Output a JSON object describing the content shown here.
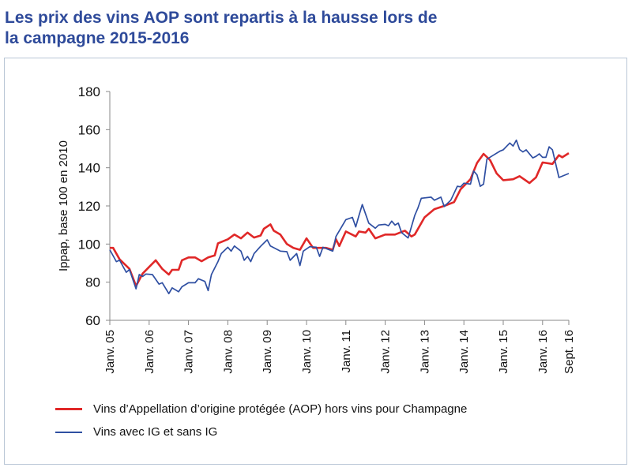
{
  "title_lines": [
    "Les prix des vins AOP sont repartis à la hausse lors de",
    "la campagne 2015-2016"
  ],
  "chart_data": {
    "type": "line",
    "title": "Les prix des vins AOP sont repartis à la hausse lors de la campagne 2015-2016",
    "ylabel": "Ippap, base 100 en 2010",
    "xlabel": "",
    "ylim": [
      60,
      180
    ],
    "yticks": [
      60,
      80,
      100,
      120,
      140,
      160,
      180
    ],
    "xticks": [
      {
        "date": "2005-01",
        "label": "Janv. 05"
      },
      {
        "date": "2006-01",
        "label": "Janv. 06"
      },
      {
        "date": "2007-01",
        "label": "Janv. 07"
      },
      {
        "date": "2008-01",
        "label": "Janv. 08"
      },
      {
        "date": "2009-01",
        "label": "Janv. 09"
      },
      {
        "date": "2010-01",
        "label": "Janv. 10"
      },
      {
        "date": "2011-01",
        "label": "Janv. 11"
      },
      {
        "date": "2012-01",
        "label": "Janv. 12"
      },
      {
        "date": "2013-01",
        "label": "Janv. 13"
      },
      {
        "date": "2014-01",
        "label": "Janv. 14"
      },
      {
        "date": "2015-01",
        "label": "Janv. 15"
      },
      {
        "date": "2016-01",
        "label": "Janv. 16"
      },
      {
        "date": "2016-09",
        "label": "Sept. 16"
      }
    ],
    "grid": false,
    "legend_position": "bottom",
    "series": [
      {
        "name": "Vins d’Appellation d’origine protégée (AOP) hors vins pour Champagne",
        "color": "#e02828",
        "points": [
          [
            "2005-01",
            98
          ],
          [
            "2005-02",
            98
          ],
          [
            "2005-04",
            92
          ],
          [
            "2005-07",
            87
          ],
          [
            "2005-09",
            78
          ],
          [
            "2005-11",
            84.5
          ],
          [
            "2006-01",
            88
          ],
          [
            "2006-03",
            91.5
          ],
          [
            "2006-05",
            87
          ],
          [
            "2006-07",
            84
          ],
          [
            "2006-08",
            86.5
          ],
          [
            "2006-10",
            86.5
          ],
          [
            "2006-11",
            91.5
          ],
          [
            "2007-01",
            93
          ],
          [
            "2007-03",
            93
          ],
          [
            "2007-05",
            91
          ],
          [
            "2007-07",
            93
          ],
          [
            "2007-09",
            94
          ],
          [
            "2007-10",
            100.4
          ],
          [
            "2008-01",
            102.5
          ],
          [
            "2008-03",
            105
          ],
          [
            "2008-05",
            103
          ],
          [
            "2008-07",
            106
          ],
          [
            "2008-09",
            103.4
          ],
          [
            "2008-11",
            104.5
          ],
          [
            "2008-12",
            108
          ],
          [
            "2009-02",
            110.3
          ],
          [
            "2009-03",
            107
          ],
          [
            "2009-05",
            105
          ],
          [
            "2009-07",
            100
          ],
          [
            "2009-09",
            98
          ],
          [
            "2009-11",
            97
          ],
          [
            "2010-01",
            103
          ],
          [
            "2010-03",
            98
          ],
          [
            "2010-07",
            98
          ],
          [
            "2010-09",
            97
          ],
          [
            "2010-10",
            102.5
          ],
          [
            "2010-11",
            99
          ],
          [
            "2011-01",
            106.6
          ],
          [
            "2011-04",
            104
          ],
          [
            "2011-05",
            106.6
          ],
          [
            "2011-07",
            106
          ],
          [
            "2011-08",
            108
          ],
          [
            "2011-10",
            103
          ],
          [
            "2012-01",
            105
          ],
          [
            "2012-04",
            105
          ],
          [
            "2012-07",
            107
          ],
          [
            "2012-09",
            104
          ],
          [
            "2012-10",
            105
          ],
          [
            "2013-01",
            114
          ],
          [
            "2013-04",
            118.3
          ],
          [
            "2013-07",
            120
          ],
          [
            "2013-10",
            122
          ],
          [
            "2013-12",
            128.7
          ],
          [
            "2014-03",
            134
          ],
          [
            "2014-05",
            142.5
          ],
          [
            "2014-07",
            147.3
          ],
          [
            "2014-09",
            144
          ],
          [
            "2014-11",
            137
          ],
          [
            "2015-01",
            133.5
          ],
          [
            "2015-04",
            134
          ],
          [
            "2015-06",
            135.6
          ],
          [
            "2015-09",
            132
          ],
          [
            "2015-11",
            135
          ],
          [
            "2016-01",
            142.8
          ],
          [
            "2016-04",
            142
          ],
          [
            "2016-06",
            146.6
          ],
          [
            "2016-07",
            145.5
          ],
          [
            "2016-09",
            147.7
          ]
        ]
      },
      {
        "name": "Vins avec IG et sans IG",
        "color": "#2f4fa2",
        "points": [
          [
            "2005-01",
            97
          ],
          [
            "2005-03",
            90.8
          ],
          [
            "2005-04",
            91.5
          ],
          [
            "2005-06",
            85.2
          ],
          [
            "2005-07",
            86.6
          ],
          [
            "2005-09",
            76.5
          ],
          [
            "2005-10",
            84
          ],
          [
            "2005-11",
            83
          ],
          [
            "2005-12",
            84.3
          ],
          [
            "2006-02",
            84
          ],
          [
            "2006-04",
            79
          ],
          [
            "2006-05",
            79.7
          ],
          [
            "2006-07",
            74
          ],
          [
            "2006-08",
            77
          ],
          [
            "2006-10",
            75
          ],
          [
            "2006-11",
            77.6
          ],
          [
            "2007-01",
            79.7
          ],
          [
            "2007-03",
            79.7
          ],
          [
            "2007-04",
            81.8
          ],
          [
            "2007-06",
            80.4
          ],
          [
            "2007-07",
            75.6
          ],
          [
            "2007-08",
            84
          ],
          [
            "2007-10",
            90.8
          ],
          [
            "2007-11",
            95
          ],
          [
            "2008-01",
            98.3
          ],
          [
            "2008-02",
            96.3
          ],
          [
            "2008-03",
            99
          ],
          [
            "2008-05",
            96.3
          ],
          [
            "2008-06",
            91.5
          ],
          [
            "2008-07",
            93.5
          ],
          [
            "2008-08",
            90.8
          ],
          [
            "2008-09",
            95
          ],
          [
            "2008-11",
            98.8
          ],
          [
            "2009-01",
            102.2
          ],
          [
            "2009-02",
            99
          ],
          [
            "2009-05",
            96.3
          ],
          [
            "2009-07",
            96
          ],
          [
            "2009-08",
            91.5
          ],
          [
            "2009-10",
            95
          ],
          [
            "2009-11",
            88.7
          ],
          [
            "2009-12",
            96.3
          ],
          [
            "2010-02",
            98.6
          ],
          [
            "2010-04",
            98.3
          ],
          [
            "2010-05",
            93.5
          ],
          [
            "2010-06",
            98.3
          ],
          [
            "2010-09",
            96.3
          ],
          [
            "2010-10",
            104
          ],
          [
            "2011-01",
            112.8
          ],
          [
            "2011-03",
            114
          ],
          [
            "2011-04",
            109
          ],
          [
            "2011-05",
            115
          ],
          [
            "2011-06",
            120.7
          ],
          [
            "2011-08",
            111
          ],
          [
            "2011-10",
            108.3
          ],
          [
            "2011-11",
            110
          ],
          [
            "2012-01",
            110.3
          ],
          [
            "2012-02",
            109.6
          ],
          [
            "2012-03",
            112
          ],
          [
            "2012-04",
            110
          ],
          [
            "2012-05",
            111
          ],
          [
            "2012-06",
            106
          ],
          [
            "2012-08",
            103.2
          ],
          [
            "2012-10",
            115
          ],
          [
            "2012-11",
            119
          ],
          [
            "2012-12",
            124
          ],
          [
            "2013-03",
            124.6
          ],
          [
            "2013-04",
            123
          ],
          [
            "2013-06",
            124.6
          ],
          [
            "2013-07",
            119.7
          ],
          [
            "2013-09",
            123
          ],
          [
            "2013-11",
            130.3
          ],
          [
            "2013-12",
            130
          ],
          [
            "2014-01",
            131.9
          ],
          [
            "2014-03",
            131.4
          ],
          [
            "2014-04",
            138.3
          ],
          [
            "2014-05",
            136.3
          ],
          [
            "2014-06",
            130.3
          ],
          [
            "2014-07",
            131.4
          ],
          [
            "2014-08",
            144.5
          ],
          [
            "2014-10",
            146.6
          ],
          [
            "2014-12",
            148.7
          ],
          [
            "2015-01",
            149.4
          ],
          [
            "2015-03",
            153
          ],
          [
            "2015-04",
            151.4
          ],
          [
            "2015-05",
            154.5
          ],
          [
            "2015-06",
            149.6
          ],
          [
            "2015-07",
            148.3
          ],
          [
            "2015-08",
            149.4
          ],
          [
            "2015-10",
            145.2
          ],
          [
            "2015-11",
            146
          ],
          [
            "2015-12",
            147.3
          ],
          [
            "2016-01",
            145.5
          ],
          [
            "2016-02",
            145.5
          ],
          [
            "2016-03",
            151
          ],
          [
            "2016-04",
            149.4
          ],
          [
            "2016-06",
            134.9
          ],
          [
            "2016-09",
            137
          ]
        ]
      }
    ]
  }
}
